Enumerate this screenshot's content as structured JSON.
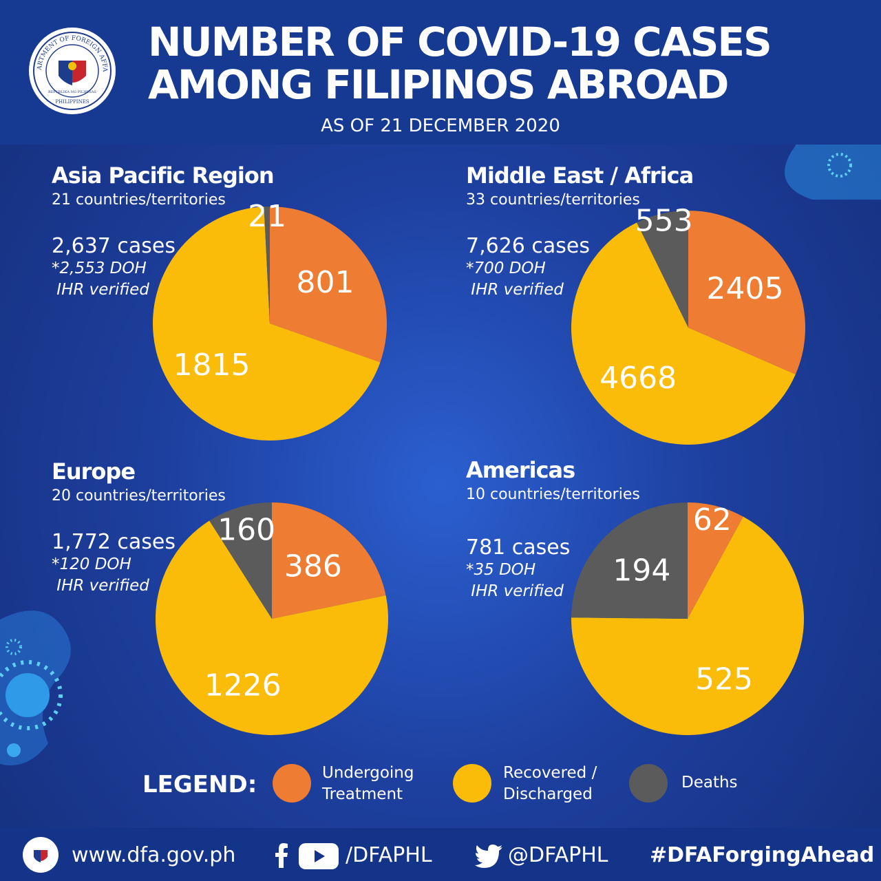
{
  "header": {
    "title_line1": "NUMBER OF  COVID-19 CASES",
    "title_line2": "AMONG FILIPINOS ABROAD",
    "as_of": "AS OF 21 DECEMBER 2020",
    "seal_text": "DEPARTMENT OF FOREIGN AFFAIRS",
    "seal_country": "PHILIPPINES",
    "seal_motto": "REPUBLIKA NG PILIPINAS"
  },
  "colors": {
    "undergoing": "#ee7c33",
    "recovered": "#fbbc09",
    "deaths": "#5b5b5b"
  },
  "regions": [
    {
      "name": "Asia Pacific Region",
      "countries": "21 countries/territories",
      "cases": "2,637 cases",
      "note": "*2,553 DOH\n IHR verified"
    },
    {
      "name": "Middle East / Africa",
      "countries": "33 countries/territories",
      "cases": "7,626 cases",
      "note": "*700 DOH\n IHR verified"
    },
    {
      "name": "Europe",
      "countries": "20 countries/territories",
      "cases": "1,772 cases",
      "note": "*120 DOH\n IHR verified"
    },
    {
      "name": "Americas",
      "countries": "10 countries/territories",
      "cases": "781 cases",
      "note": "*35 DOH\n IHR verified"
    }
  ],
  "legend": {
    "title": "LEGEND:",
    "undergoing": "Undergoing\nTreatment",
    "recovered": "Recovered /\nDischarged",
    "deaths": "Deaths"
  },
  "footer": {
    "website": "www.dfa.gov.ph",
    "social_handle": "/DFAPHL",
    "twitter": "@DFAPHL",
    "hashtag": "#DFAForgingAhead"
  },
  "chart_data": [
    {
      "type": "pie",
      "title": "Asia Pacific Region",
      "categories": [
        "Undergoing Treatment",
        "Recovered / Discharged",
        "Deaths"
      ],
      "values": [
        801,
        1815,
        21
      ]
    },
    {
      "type": "pie",
      "title": "Middle East / Africa",
      "categories": [
        "Undergoing Treatment",
        "Recovered / Discharged",
        "Deaths"
      ],
      "values": [
        2405,
        4668,
        553
      ]
    },
    {
      "type": "pie",
      "title": "Europe",
      "categories": [
        "Undergoing Treatment",
        "Recovered / Discharged",
        "Deaths"
      ],
      "values": [
        386,
        1226,
        160
      ]
    },
    {
      "type": "pie",
      "title": "Americas",
      "categories": [
        "Undergoing Treatment",
        "Recovered / Discharged",
        "Deaths"
      ],
      "values": [
        62,
        525,
        194
      ]
    }
  ]
}
